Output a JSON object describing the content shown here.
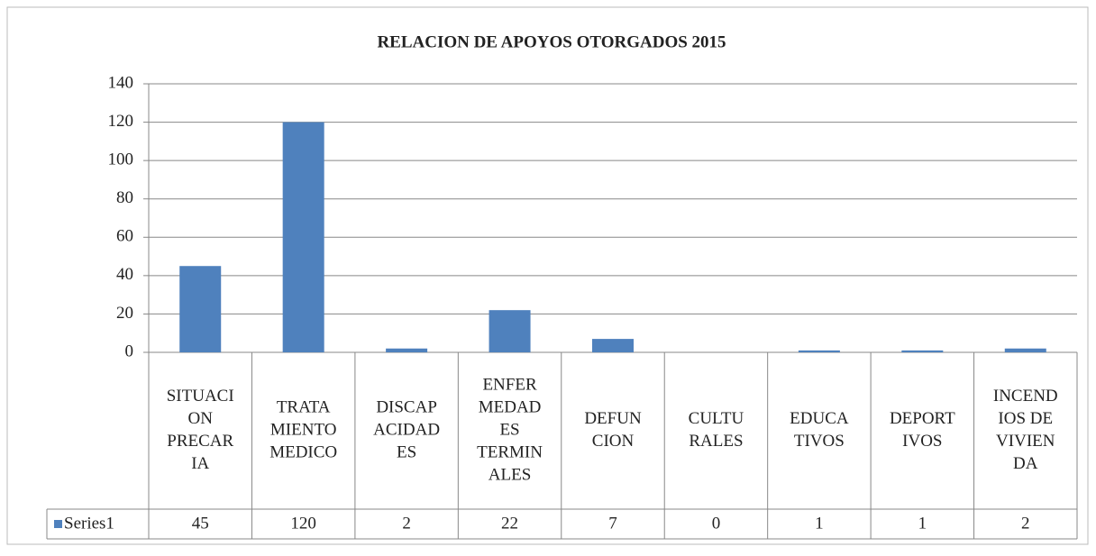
{
  "chart_data": {
    "type": "bar",
    "title": "RELACION DE APOYOS OTORGADOS 2015",
    "categories": [
      [
        "SITUACI",
        "ON",
        "PRECAR",
        "IA"
      ],
      [
        "TRATA",
        "MIENTO",
        "MEDICO"
      ],
      [
        "DISCAP",
        "ACIDAD",
        "ES"
      ],
      [
        "ENFER",
        "MEDAD",
        "ES",
        "TERMIN",
        "ALES"
      ],
      [
        "DEFUN",
        "CION"
      ],
      [
        "CULTU",
        "RALES"
      ],
      [
        "EDUCA",
        "TIVOS"
      ],
      [
        "DEPORT",
        "IVOS"
      ],
      [
        "INCEND",
        "IOS DE",
        "VIVIEN",
        "DA"
      ]
    ],
    "series": [
      {
        "name": "Series1",
        "color": "#4f81bd",
        "values": [
          45,
          120,
          2,
          22,
          7,
          0,
          1,
          1,
          2
        ]
      }
    ],
    "ylim": [
      0,
      140
    ],
    "yticks": [
      0,
      20,
      40,
      60,
      80,
      100,
      120,
      140
    ],
    "grid": true
  }
}
